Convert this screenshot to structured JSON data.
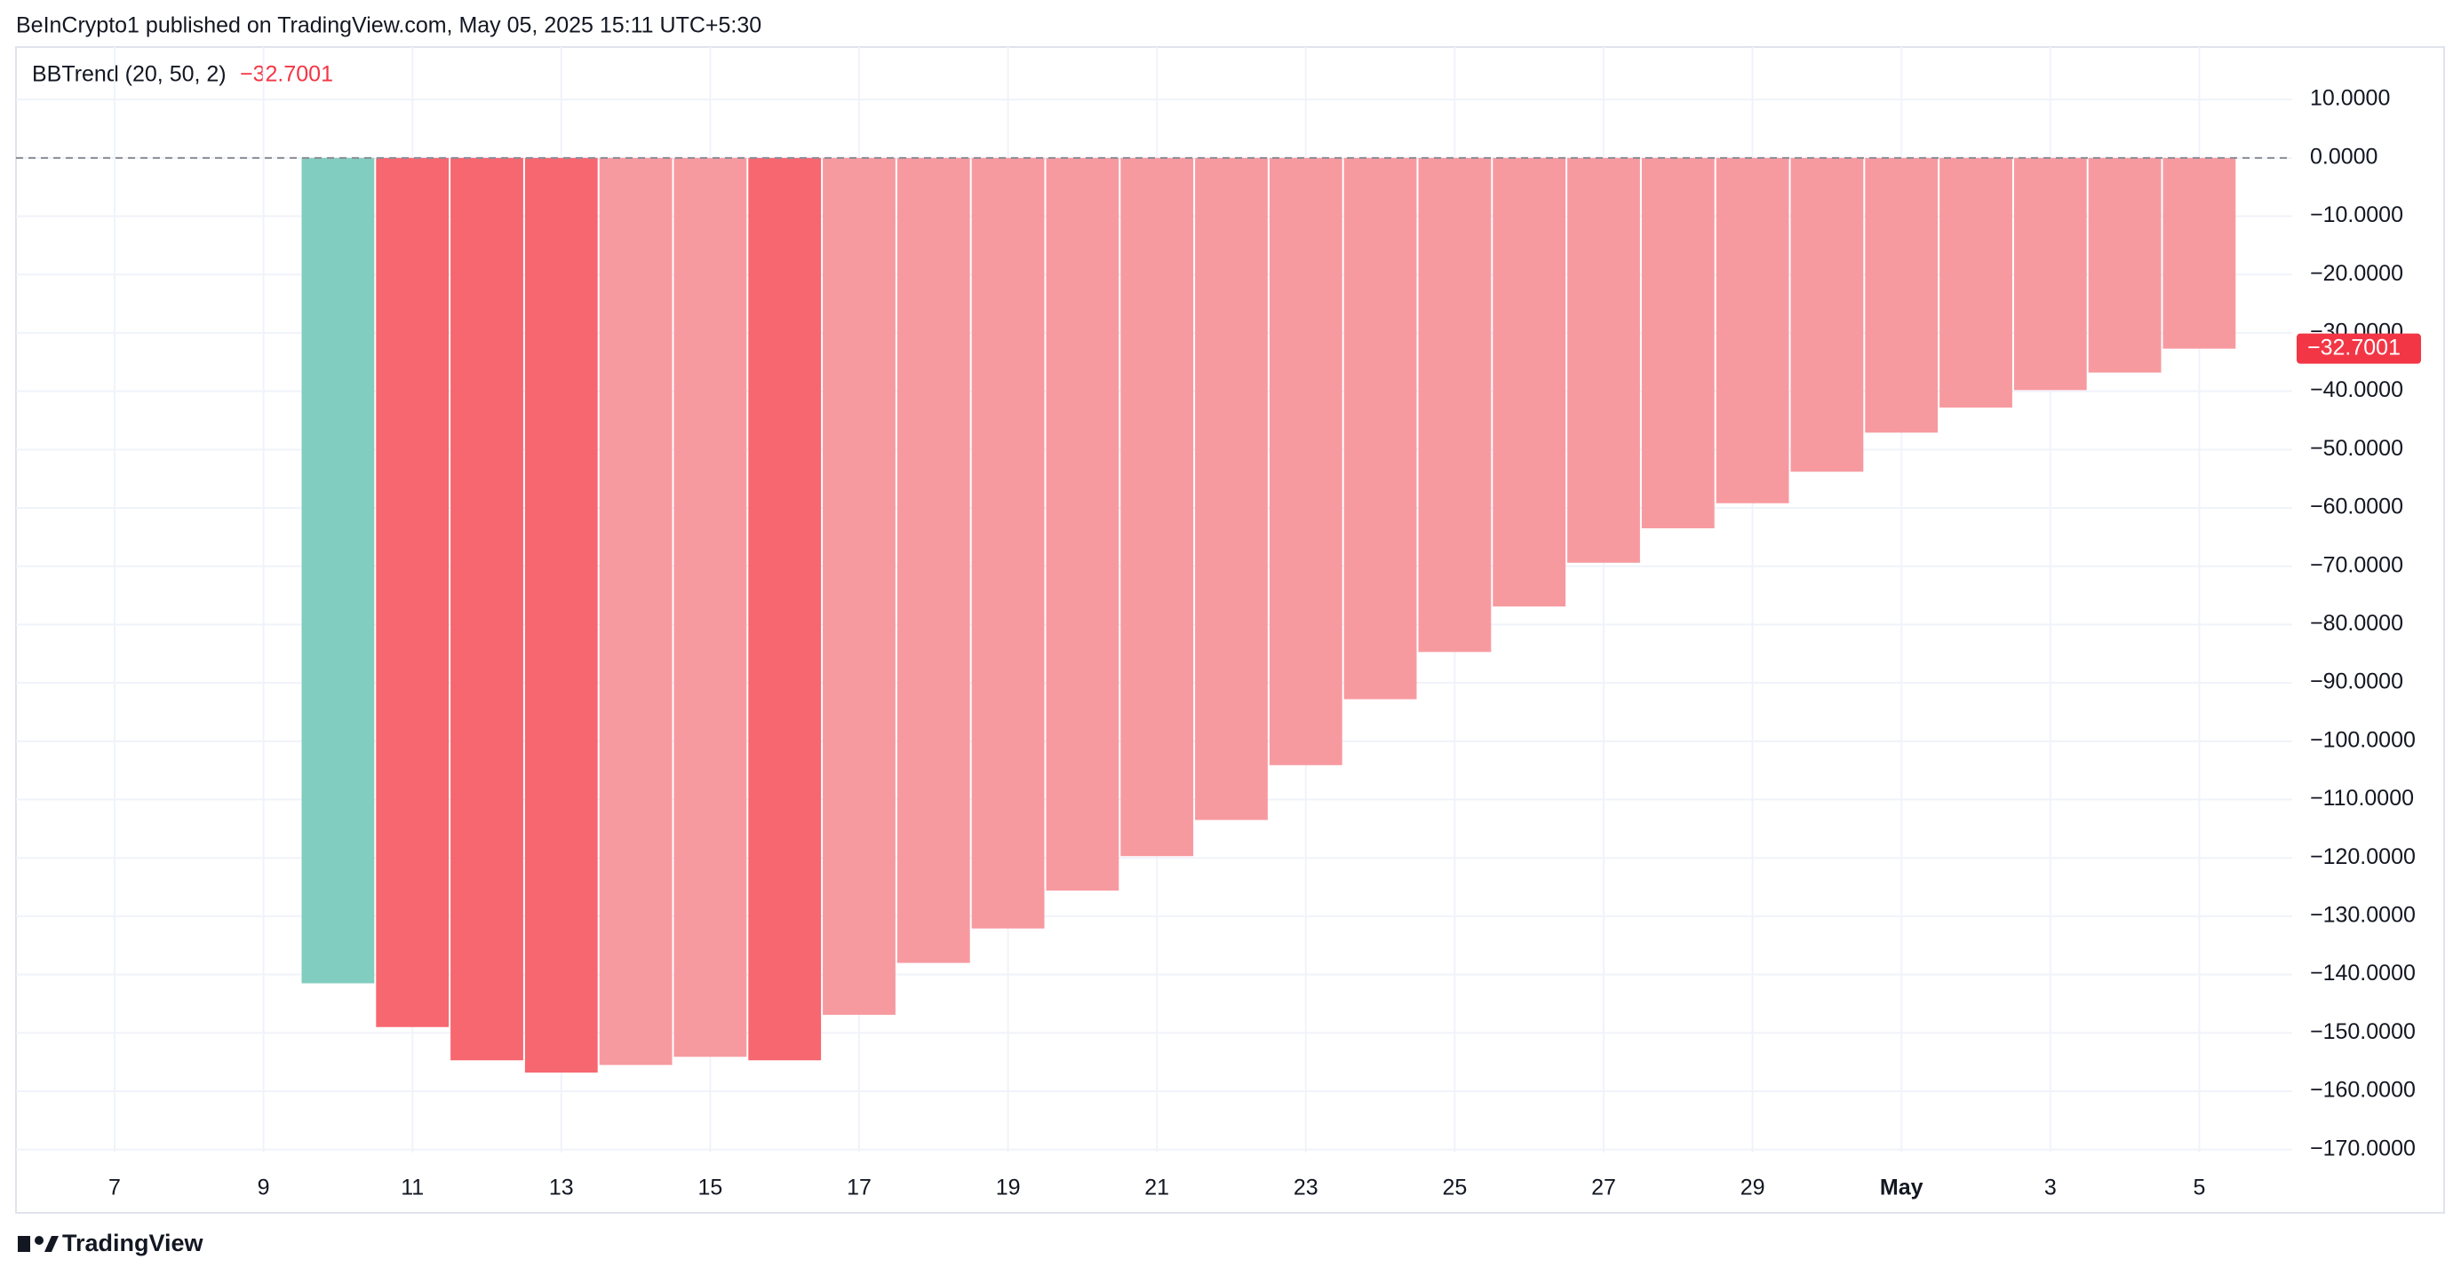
{
  "header": "BeInCrypto1 published on TradingView.com, May 05, 2025 15:11 UTC+5:30",
  "footer": "TradingView",
  "chart_data": {
    "type": "bar",
    "title": "BBTrend (20, 50, 2)",
    "categories": [
      "7",
      null,
      "9",
      null,
      "11",
      null,
      "13",
      null,
      "15",
      null,
      "17",
      null,
      "19",
      null,
      "21",
      null,
      "23",
      null,
      "25",
      null,
      "27",
      null,
      "29",
      null,
      "May",
      null,
      "3",
      null,
      "5"
    ],
    "values": [
      null,
      null,
      null,
      -141.5,
      -149.0,
      -154.7,
      -156.8,
      -155.5,
      -154.1,
      -154.7,
      -146.9,
      -138.0,
      -132.1,
      -125.6,
      -119.7,
      -113.5,
      -104.1,
      -92.8,
      -84.7,
      -76.9,
      -69.4,
      -63.5,
      -59.2,
      -53.8,
      -47.1,
      -42.8,
      -39.8,
      -36.8,
      -32.7001
    ],
    "value_labels": [
      null,
      null,
      null,
      null,
      null,
      null,
      null,
      null,
      null,
      null,
      null,
      null,
      null,
      null,
      null,
      null,
      null,
      null,
      null,
      null,
      null,
      null,
      null,
      null,
      null,
      null,
      null,
      null,
      "−32.7001"
    ],
    "colors": [
      null,
      null,
      null,
      "#81cdbf",
      "#f7676f",
      "#f7676f",
      "#f7676f",
      "#f79aa0",
      "#f79aa0",
      "#f7676f",
      "#f79aa0",
      "#f79aa0",
      "#f79aa0",
      "#f79aa0",
      "#f79aa0",
      "#f79aa0",
      "#f79aa0",
      "#f79aa0",
      "#f79aa0",
      "#f79aa0",
      "#f79aa0",
      "#f79aa0",
      "#f79aa0",
      "#f79aa0",
      "#f79aa0",
      "#f79aa0",
      "#f79aa0",
      "#f79aa0",
      "#f79aa0"
    ],
    "label_color": "#f23645",
    "ylim": [
      -170.5,
      19
    ],
    "yticks": [
      {
        "value": 10,
        "label": "10.0000"
      },
      {
        "value": 0,
        "label": "0.0000"
      },
      {
        "value": -10,
        "label": "−10.0000"
      },
      {
        "value": -20,
        "label": "−20.0000"
      },
      {
        "value": -30,
        "label": "−30.0000"
      },
      {
        "value": -40,
        "label": "−40.0000"
      },
      {
        "value": -50,
        "label": "−50.0000"
      },
      {
        "value": -60,
        "label": "−60.0000"
      },
      {
        "value": -70,
        "label": "−70.0000"
      },
      {
        "value": -80,
        "label": "−80.0000"
      },
      {
        "value": -90,
        "label": "−90.0000"
      },
      {
        "value": -100,
        "label": "−100.0000"
      },
      {
        "value": -110,
        "label": "−110.0000"
      },
      {
        "value": -120,
        "label": "−120.0000"
      },
      {
        "value": -130,
        "label": "−130.0000"
      },
      {
        "value": -140,
        "label": "−140.0000"
      },
      {
        "value": -150,
        "label": "−150.0000"
      },
      {
        "value": -160,
        "label": "−160.0000"
      },
      {
        "value": -170,
        "label": "−170.0000"
      }
    ],
    "grid": true
  }
}
